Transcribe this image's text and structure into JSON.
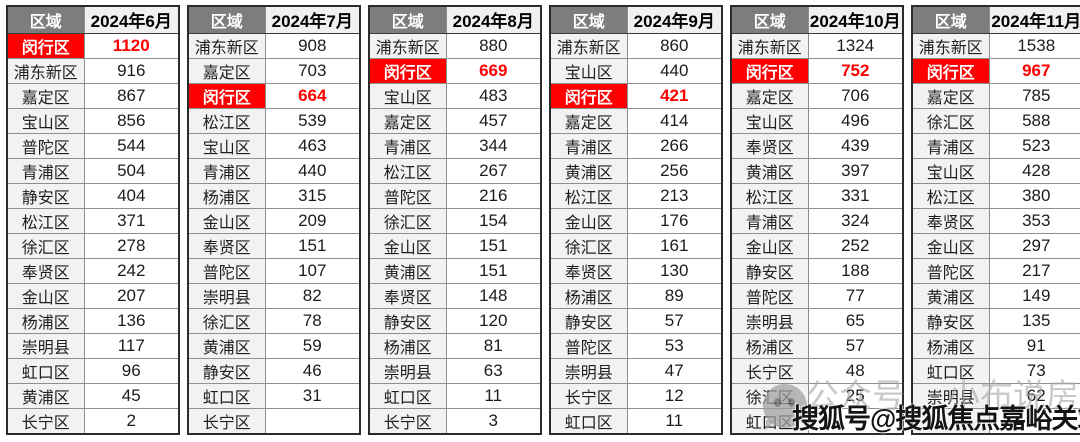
{
  "chart_data": {
    "type": "table",
    "column_pairs": [
      {
        "region_header": "区域",
        "month_header": "2024年6月",
        "rows": [
          {
            "district": "闵行区",
            "value": "1120",
            "highlight": true
          },
          {
            "district": "浦东新区",
            "value": "916",
            "highlight": false
          },
          {
            "district": "嘉定区",
            "value": "867",
            "highlight": false
          },
          {
            "district": "宝山区",
            "value": "856",
            "highlight": false
          },
          {
            "district": "普陀区",
            "value": "544",
            "highlight": false
          },
          {
            "district": "青浦区",
            "value": "504",
            "highlight": false
          },
          {
            "district": "静安区",
            "value": "404",
            "highlight": false
          },
          {
            "district": "松江区",
            "value": "371",
            "highlight": false
          },
          {
            "district": "徐汇区",
            "value": "278",
            "highlight": false
          },
          {
            "district": "奉贤区",
            "value": "242",
            "highlight": false
          },
          {
            "district": "金山区",
            "value": "207",
            "highlight": false
          },
          {
            "district": "杨浦区",
            "value": "136",
            "highlight": false
          },
          {
            "district": "崇明县",
            "value": "117",
            "highlight": false
          },
          {
            "district": "虹口区",
            "value": "96",
            "highlight": false
          },
          {
            "district": "黄浦区",
            "value": "45",
            "highlight": false
          },
          {
            "district": "长宁区",
            "value": "2",
            "highlight": false
          }
        ]
      },
      {
        "region_header": "区域",
        "month_header": "2024年7月",
        "rows": [
          {
            "district": "浦东新区",
            "value": "908",
            "highlight": false
          },
          {
            "district": "嘉定区",
            "value": "703",
            "highlight": false
          },
          {
            "district": "闵行区",
            "value": "664",
            "highlight": true
          },
          {
            "district": "松江区",
            "value": "539",
            "highlight": false
          },
          {
            "district": "宝山区",
            "value": "463",
            "highlight": false
          },
          {
            "district": "青浦区",
            "value": "440",
            "highlight": false
          },
          {
            "district": "杨浦区",
            "value": "315",
            "highlight": false
          },
          {
            "district": "金山区",
            "value": "209",
            "highlight": false
          },
          {
            "district": "奉贤区",
            "value": "151",
            "highlight": false
          },
          {
            "district": "普陀区",
            "value": "107",
            "highlight": false
          },
          {
            "district": "崇明县",
            "value": "82",
            "highlight": false
          },
          {
            "district": "徐汇区",
            "value": "78",
            "highlight": false
          },
          {
            "district": "黄浦区",
            "value": "59",
            "highlight": false
          },
          {
            "district": "静安区",
            "value": "46",
            "highlight": false
          },
          {
            "district": "虹口区",
            "value": "31",
            "highlight": false
          },
          {
            "district": "长宁区",
            "value": "",
            "highlight": false
          }
        ]
      },
      {
        "region_header": "区域",
        "month_header": "2024年8月",
        "rows": [
          {
            "district": "浦东新区",
            "value": "880",
            "highlight": false
          },
          {
            "district": "闵行区",
            "value": "669",
            "highlight": true
          },
          {
            "district": "宝山区",
            "value": "483",
            "highlight": false
          },
          {
            "district": "嘉定区",
            "value": "457",
            "highlight": false
          },
          {
            "district": "青浦区",
            "value": "344",
            "highlight": false
          },
          {
            "district": "松江区",
            "value": "267",
            "highlight": false
          },
          {
            "district": "普陀区",
            "value": "216",
            "highlight": false
          },
          {
            "district": "徐汇区",
            "value": "154",
            "highlight": false
          },
          {
            "district": "金山区",
            "value": "151",
            "highlight": false
          },
          {
            "district": "黄浦区",
            "value": "151",
            "highlight": false
          },
          {
            "district": "奉贤区",
            "value": "148",
            "highlight": false
          },
          {
            "district": "静安区",
            "value": "120",
            "highlight": false
          },
          {
            "district": "杨浦区",
            "value": "81",
            "highlight": false
          },
          {
            "district": "崇明县",
            "value": "63",
            "highlight": false
          },
          {
            "district": "虹口区",
            "value": "11",
            "highlight": false
          },
          {
            "district": "长宁区",
            "value": "3",
            "highlight": false
          }
        ]
      },
      {
        "region_header": "区域",
        "month_header": "2024年9月",
        "rows": [
          {
            "district": "浦东新区",
            "value": "860",
            "highlight": false
          },
          {
            "district": "宝山区",
            "value": "440",
            "highlight": false
          },
          {
            "district": "闵行区",
            "value": "421",
            "highlight": true
          },
          {
            "district": "嘉定区",
            "value": "414",
            "highlight": false
          },
          {
            "district": "青浦区",
            "value": "266",
            "highlight": false
          },
          {
            "district": "黄浦区",
            "value": "256",
            "highlight": false
          },
          {
            "district": "松江区",
            "value": "213",
            "highlight": false
          },
          {
            "district": "金山区",
            "value": "176",
            "highlight": false
          },
          {
            "district": "徐汇区",
            "value": "161",
            "highlight": false
          },
          {
            "district": "奉贤区",
            "value": "130",
            "highlight": false
          },
          {
            "district": "杨浦区",
            "value": "89",
            "highlight": false
          },
          {
            "district": "静安区",
            "value": "57",
            "highlight": false
          },
          {
            "district": "普陀区",
            "value": "53",
            "highlight": false
          },
          {
            "district": "崇明县",
            "value": "47",
            "highlight": false
          },
          {
            "district": "长宁区",
            "value": "12",
            "highlight": false
          },
          {
            "district": "虹口区",
            "value": "11",
            "highlight": false
          }
        ]
      },
      {
        "region_header": "区域",
        "month_header": "2024年10月",
        "rows": [
          {
            "district": "浦东新区",
            "value": "1324",
            "highlight": false
          },
          {
            "district": "闵行区",
            "value": "752",
            "highlight": true
          },
          {
            "district": "嘉定区",
            "value": "706",
            "highlight": false
          },
          {
            "district": "宝山区",
            "value": "496",
            "highlight": false
          },
          {
            "district": "奉贤区",
            "value": "439",
            "highlight": false
          },
          {
            "district": "黄浦区",
            "value": "397",
            "highlight": false
          },
          {
            "district": "松江区",
            "value": "331",
            "highlight": false
          },
          {
            "district": "青浦区",
            "value": "324",
            "highlight": false
          },
          {
            "district": "金山区",
            "value": "252",
            "highlight": false
          },
          {
            "district": "静安区",
            "value": "188",
            "highlight": false
          },
          {
            "district": "普陀区",
            "value": "77",
            "highlight": false
          },
          {
            "district": "崇明县",
            "value": "65",
            "highlight": false
          },
          {
            "district": "杨浦区",
            "value": "57",
            "highlight": false
          },
          {
            "district": "长宁区",
            "value": "48",
            "highlight": false
          },
          {
            "district": "徐汇区",
            "value": "25",
            "highlight": false
          },
          {
            "district": "虹口区",
            "value": "",
            "highlight": false
          }
        ]
      },
      {
        "region_header": "区域",
        "month_header": "2024年11月",
        "rows": [
          {
            "district": "浦东新区",
            "value": "1538",
            "highlight": false
          },
          {
            "district": "闵行区",
            "value": "967",
            "highlight": true
          },
          {
            "district": "嘉定区",
            "value": "785",
            "highlight": false
          },
          {
            "district": "徐汇区",
            "value": "588",
            "highlight": false
          },
          {
            "district": "青浦区",
            "value": "523",
            "highlight": false
          },
          {
            "district": "宝山区",
            "value": "428",
            "highlight": false
          },
          {
            "district": "松江区",
            "value": "380",
            "highlight": false
          },
          {
            "district": "奉贤区",
            "value": "353",
            "highlight": false
          },
          {
            "district": "金山区",
            "value": "297",
            "highlight": false
          },
          {
            "district": "普陀区",
            "value": "217",
            "highlight": false
          },
          {
            "district": "黄浦区",
            "value": "149",
            "highlight": false
          },
          {
            "district": "静安区",
            "value": "135",
            "highlight": false
          },
          {
            "district": "杨浦区",
            "value": "91",
            "highlight": false
          },
          {
            "district": "虹口区",
            "value": "73",
            "highlight": false
          },
          {
            "district": "崇明县",
            "value": "62",
            "highlight": false
          },
          {
            "district": "",
            "value": "",
            "highlight": false
          }
        ]
      }
    ]
  },
  "watermarks": {
    "wechat_label": "公众号",
    "wechat_name": "小布说房",
    "sohu_text": "搜狐号@搜狐焦点嘉峪关站"
  },
  "colors": {
    "highlight_red": "#fd0002",
    "region_header_bg": "#7d7d7d",
    "month_header_bg": "#f0f0f0",
    "district_cell_bg": "#f2f2f2"
  }
}
